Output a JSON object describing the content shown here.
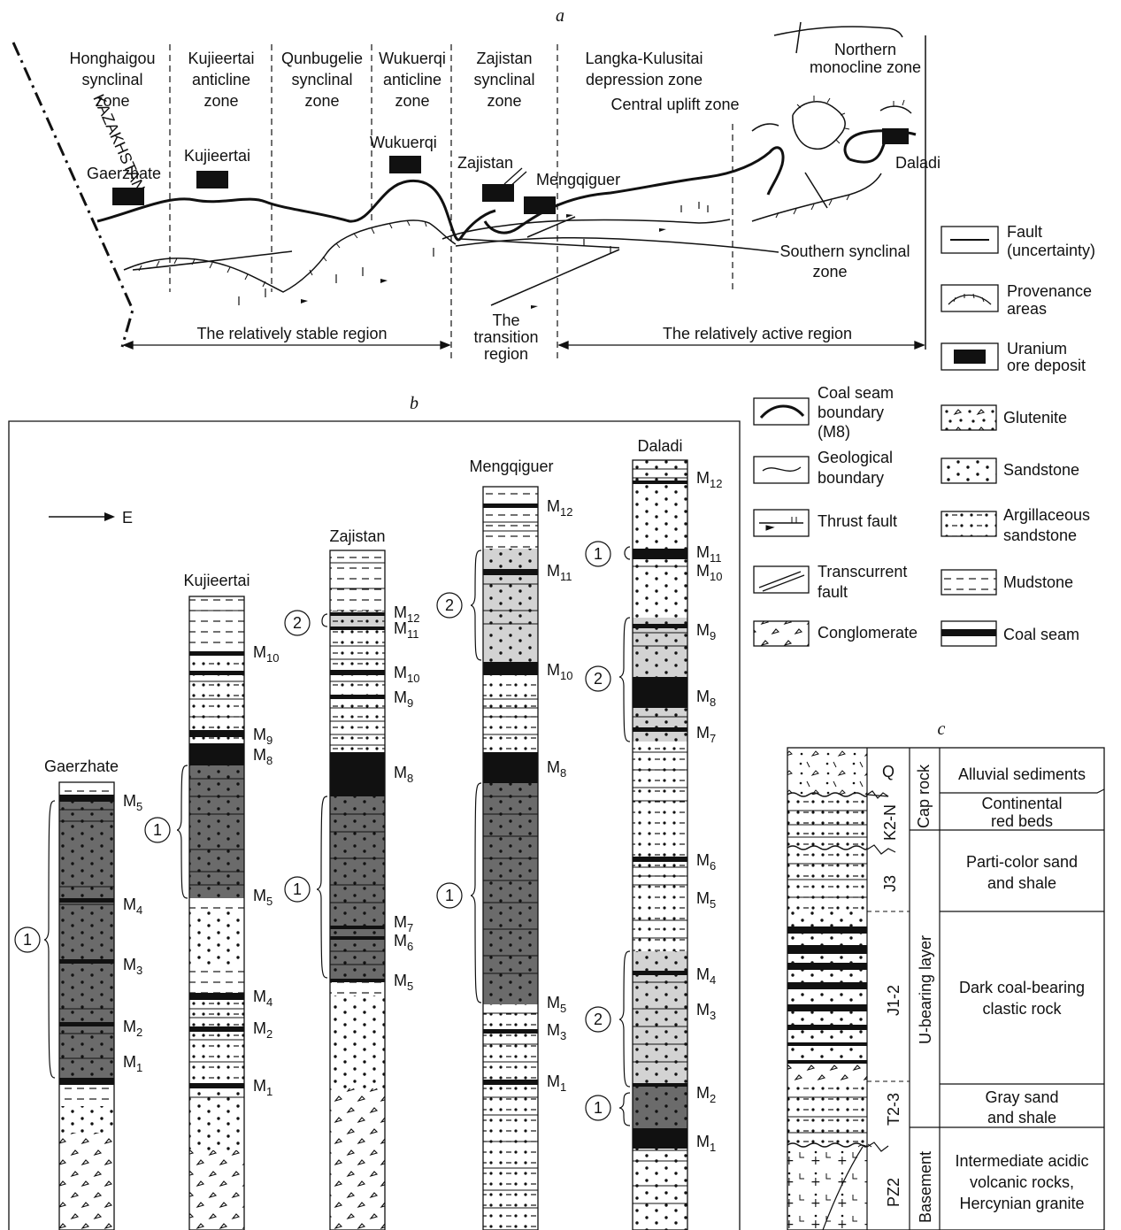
{
  "panels": {
    "a": "a",
    "b": "b",
    "c": "c"
  },
  "map": {
    "zones": [
      [
        "Honghaigou",
        "synclinal",
        "zone"
      ],
      [
        "Kujieertai",
        "anticline",
        "zone"
      ],
      [
        "Qunbugelie",
        "synclinal",
        "zone"
      ],
      [
        "Wukuerqi",
        "anticline",
        "zone"
      ],
      [
        "Zajistan",
        "synclinal",
        "zone"
      ],
      [
        "Langka-Kulusitai",
        "depression zone"
      ]
    ],
    "northern_zone": [
      "Northern",
      "monocline zone"
    ],
    "central_uplift": "Central uplift zone",
    "southern_zone": [
      "Southern synclinal",
      "zone"
    ],
    "country": "KAZAKHSTAN",
    "deposits": [
      "Gaerzhate",
      "Kujieertai",
      "Wukuerqi",
      "Zajistan",
      "Mengqiguer",
      "Daladi"
    ],
    "stable_region": "The relatively stable region",
    "transition_region": [
      "The",
      "transition",
      "region"
    ],
    "active_region": "The relatively active region"
  },
  "legend_a": [
    [
      "Fault",
      "(uncertainty)"
    ],
    [
      "Provenance",
      "areas"
    ],
    [
      "Uranium",
      "ore deposit"
    ]
  ],
  "legend_b": {
    "left": [
      [
        "Coal seam",
        "boundary",
        "(M8)"
      ],
      [
        "Geological",
        "boundary"
      ],
      [
        "Thrust fault"
      ],
      [
        "Transcurrent",
        "fault"
      ],
      [
        "Conglomerate"
      ]
    ],
    "right": [
      [
        "Glutenite"
      ],
      [
        "Sandstone"
      ],
      [
        "Argillaceous",
        "sandstone"
      ],
      [
        "Mudstone"
      ],
      [
        "Coal seam"
      ]
    ]
  },
  "sections": {
    "direction": "E",
    "names": [
      "Gaerzhate",
      "Kujieertai",
      "Zajistan",
      "Mengqiguer",
      "Daladi"
    ],
    "circle_labels": [
      "1",
      "2"
    ]
  },
  "column_c": {
    "periods": [
      "Q",
      "K2-N",
      "J3",
      "J1-2",
      "T2-3",
      "PZ2"
    ],
    "groups": [
      "Cap rock",
      "U-bearing layer",
      "Basement"
    ],
    "descriptions": [
      [
        "Alluvial sediments"
      ],
      [
        "Continental",
        "red beds"
      ],
      [
        "Parti-color sand",
        "and shale"
      ],
      [
        "Dark coal-bearing",
        "clastic rock"
      ],
      [
        "Gray sand",
        "and shale"
      ],
      [
        "Intermediate acidic",
        "volcanic rocks,",
        "Hercynian granite"
      ]
    ]
  },
  "colors": {
    "ink": "#111111",
    "dark": "#6b6b6b",
    "light": "#d3d3d3",
    "coal": "#111111"
  }
}
